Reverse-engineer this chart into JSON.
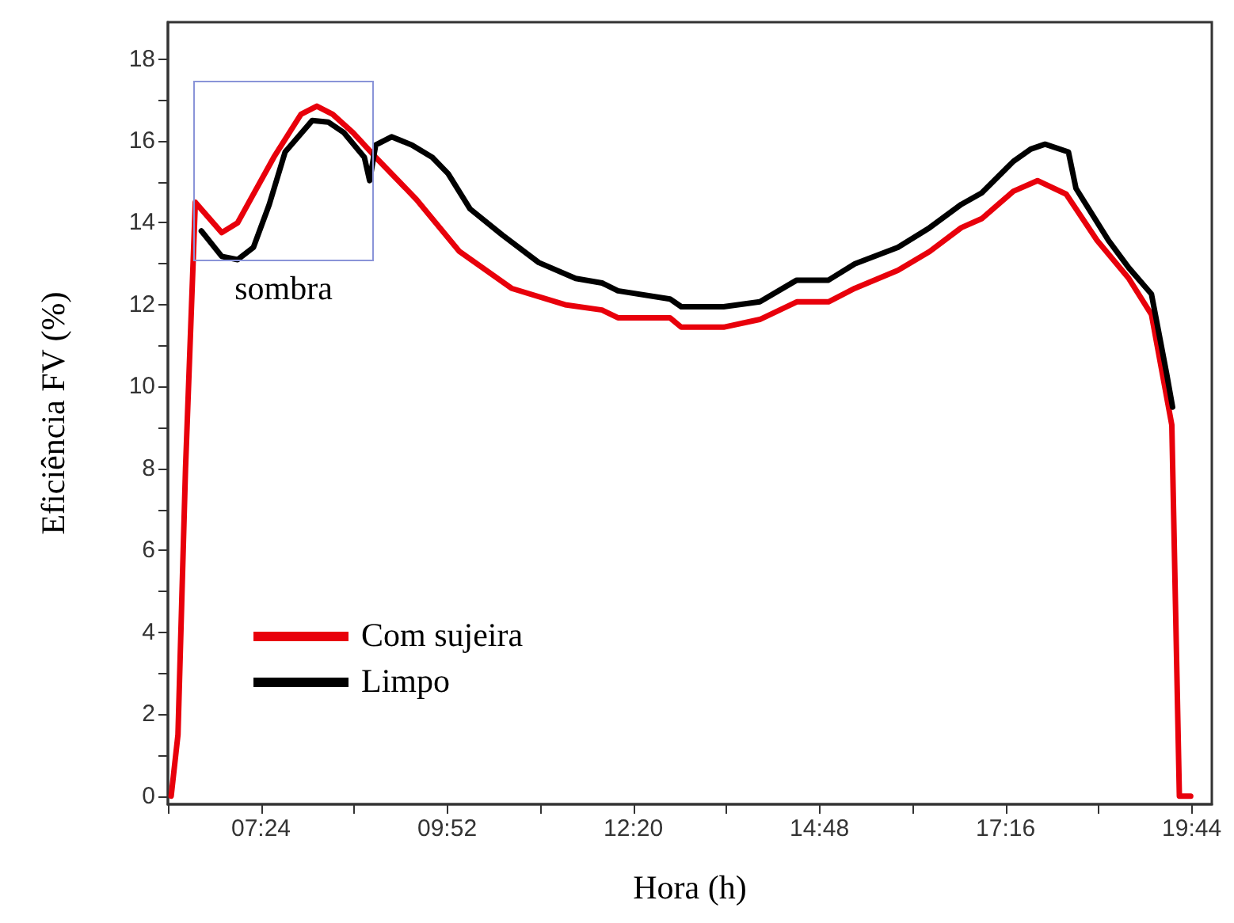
{
  "chart_data": {
    "type": "line",
    "xlabel": "Hora (h)",
    "ylabel": "Eficiência FV (%)",
    "xlim": [
      6.1667,
      20
    ],
    "ylim": [
      -0.2,
      18.9
    ],
    "xticks": [
      {
        "value": 6.1667,
        "label": null
      },
      {
        "value": 7.4,
        "label": "07:24"
      },
      {
        "value": 8.6333,
        "label": null
      },
      {
        "value": 9.8667,
        "label": "09:52"
      },
      {
        "value": 11.1,
        "label": null
      },
      {
        "value": 12.3333,
        "label": "12:20"
      },
      {
        "value": 13.5667,
        "label": null
      },
      {
        "value": 14.8,
        "label": "14:48"
      },
      {
        "value": 16.0333,
        "label": null
      },
      {
        "value": 17.2667,
        "label": "17:16"
      },
      {
        "value": 18.5,
        "label": null
      },
      {
        "value": 19.7333,
        "label": "19:44"
      }
    ],
    "yticks": [
      0,
      {
        "value": 1,
        "label": null
      },
      2,
      {
        "value": 3,
        "label": null
      },
      4,
      {
        "value": 5,
        "label": null
      },
      6,
      {
        "value": 7,
        "label": null
      },
      8,
      {
        "value": 9,
        "label": null
      },
      10,
      {
        "value": 11,
        "label": null
      },
      12,
      {
        "value": 13,
        "label": null
      },
      14,
      {
        "value": 15,
        "label": null
      },
      16,
      {
        "value": 17,
        "label": null
      },
      18
    ],
    "grid": false,
    "legend": "bottom left",
    "marker": "none",
    "line_style": "solid",
    "annotations": [
      {
        "text": "sombra",
        "x": 7.7,
        "y": 15.2
      }
    ],
    "series": [
      {
        "name": "Com sujeira",
        "color": "#e8000b",
        "x": [
          6.21,
          6.3,
          6.4,
          6.53,
          6.88,
          7.09,
          7.57,
          7.93,
          8.14,
          8.35,
          8.62,
          8.92,
          9.46,
          10.03,
          10.72,
          11.43,
          11.92,
          12.13,
          12.82,
          12.97,
          13.53,
          14.01,
          14.5,
          14.92,
          15.27,
          15.84,
          16.26,
          16.68,
          16.95,
          17.37,
          17.69,
          18.07,
          18.48,
          18.9,
          19.2,
          19.47,
          19.57,
          19.72
        ],
        "values": [
          0,
          1.5,
          8,
          14.5,
          13.76,
          14.0,
          15.6,
          16.65,
          16.85,
          16.65,
          16.2,
          15.6,
          14.57,
          13.3,
          12.4,
          12.0,
          11.87,
          11.68,
          11.68,
          11.45,
          11.45,
          11.64,
          12.07,
          12.07,
          12.4,
          12.84,
          13.3,
          13.88,
          14.1,
          14.77,
          15.03,
          14.7,
          13.57,
          12.64,
          11.76,
          9.06,
          0,
          0
        ]
      },
      {
        "name": "Limpo",
        "color": "#000000",
        "x": [
          6.61,
          6.88,
          7.09,
          7.3,
          7.51,
          7.72,
          8.08,
          8.29,
          8.5,
          8.77,
          8.84,
          8.92,
          9.13,
          9.4,
          9.67,
          9.88,
          10.17,
          10.6,
          11.08,
          11.57,
          11.92,
          12.13,
          12.82,
          12.97,
          13.53,
          14.01,
          14.5,
          14.92,
          15.27,
          15.84,
          16.26,
          16.68,
          16.95,
          17.37,
          17.6,
          17.79,
          18.1,
          18.2,
          18.63,
          18.9,
          19.2,
          19.4,
          19.48
        ],
        "values": [
          13.8,
          13.18,
          13.1,
          13.4,
          14.45,
          15.73,
          16.5,
          16.46,
          16.2,
          15.6,
          15.03,
          15.9,
          16.1,
          15.9,
          15.6,
          15.2,
          14.34,
          13.7,
          13.03,
          12.64,
          12.53,
          12.34,
          12.14,
          11.95,
          11.95,
          12.07,
          12.6,
          12.6,
          13.0,
          13.4,
          13.88,
          14.45,
          14.73,
          15.5,
          15.8,
          15.92,
          15.73,
          14.84,
          13.57,
          12.9,
          12.26,
          10.33,
          9.5
        ]
      }
    ]
  }
}
